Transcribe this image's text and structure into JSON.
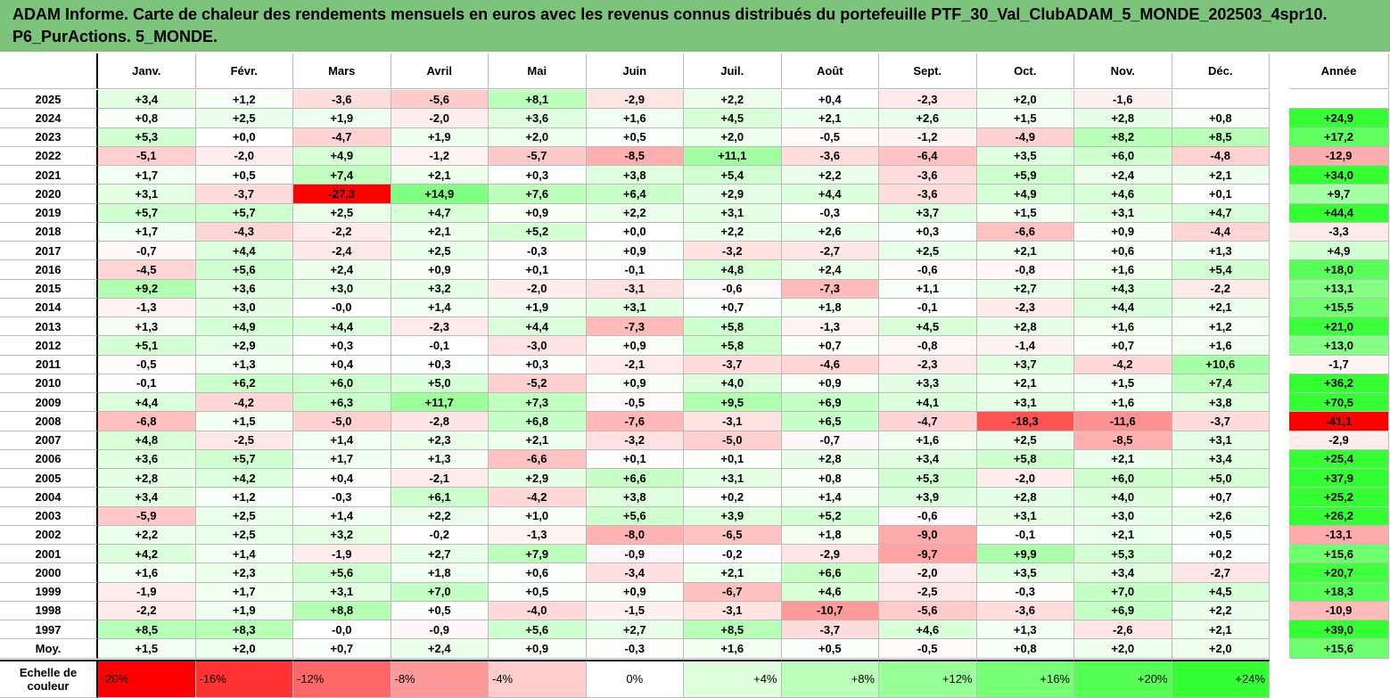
{
  "title": "ADAM Informe. Carte de chaleur des rendements mensuels en euros avec les revenus connus distribués du portefeuille PTF_30_Val_ClubADAM_5_MONDE_202503_4spr10. P6_PurActions. 5_MONDE.",
  "chart_data": {
    "type": "heatmap",
    "columns": [
      "Janv.",
      "Févr.",
      "Mars",
      "Avril",
      "Mai",
      "Juin",
      "Juil.",
      "Août",
      "Sept.",
      "Oct.",
      "Nov.",
      "Déc."
    ],
    "year_column": "Année",
    "rows": [
      {
        "label": "2025",
        "values": [
          "+3,4",
          "+1,2",
          "-3,6",
          "-5,6",
          "+8,1",
          "-2,9",
          "+2,2",
          "+0,4",
          "-2,3",
          "+2,0",
          "-1,6",
          ""
        ],
        "year": ""
      },
      {
        "label": "2024",
        "values": [
          "+0,8",
          "+2,5",
          "+1,9",
          "-2,0",
          "+3,6",
          "+1,6",
          "+4,5",
          "+2,1",
          "+2,6",
          "+1,5",
          "+2,8",
          "+0,8"
        ],
        "year": "+24,9"
      },
      {
        "label": "2023",
        "values": [
          "+5,3",
          "+0,0",
          "-4,7",
          "+1,9",
          "+2,0",
          "+0,5",
          "+2,0",
          "-0,5",
          "-1,2",
          "-4,9",
          "+8,2",
          "+8,5"
        ],
        "year": "+17,2"
      },
      {
        "label": "2022",
        "values": [
          "-5,1",
          "-2,0",
          "+4,9",
          "-1,2",
          "-5,7",
          "-8,5",
          "+11,1",
          "-3,6",
          "-6,4",
          "+3,5",
          "+6,0",
          "-4,8"
        ],
        "year": "-12,9"
      },
      {
        "label": "2021",
        "values": [
          "+1,7",
          "+0,5",
          "+7,4",
          "+2,1",
          "+0,3",
          "+3,8",
          "+5,4",
          "+2,2",
          "-3,6",
          "+5,9",
          "+2,4",
          "+2,1"
        ],
        "year": "+34,0"
      },
      {
        "label": "2020",
        "values": [
          "+3,1",
          "-3,7",
          "-27,3",
          "+14,9",
          "+7,6",
          "+6,4",
          "+2,9",
          "+4,4",
          "-3,6",
          "+4,9",
          "+4,6",
          "+0,1"
        ],
        "year": "+9,7"
      },
      {
        "label": "2019",
        "values": [
          "+5,7",
          "+5,7",
          "+2,5",
          "+4,7",
          "+0,9",
          "+2,2",
          "+3,1",
          "-0,3",
          "+3,7",
          "+1,5",
          "+3,1",
          "+4,7"
        ],
        "year": "+44,4"
      },
      {
        "label": "2018",
        "values": [
          "+1,7",
          "-4,3",
          "-2,2",
          "+2,1",
          "+5,2",
          "+0,0",
          "+2,2",
          "+2,6",
          "+0,3",
          "-6,6",
          "+0,9",
          "-4,4"
        ],
        "year": "-3,3"
      },
      {
        "label": "2017",
        "values": [
          "-0,7",
          "+4,4",
          "-2,4",
          "+2,5",
          "-0,3",
          "+0,9",
          "-3,2",
          "-2,7",
          "+2,5",
          "+2,1",
          "+0,6",
          "+1,3"
        ],
        "year": "+4,9"
      },
      {
        "label": "2016",
        "values": [
          "-4,5",
          "+5,6",
          "+2,4",
          "+0,9",
          "+0,1",
          "-0,1",
          "+4,8",
          "+2,4",
          "-0,6",
          "-0,8",
          "+1,6",
          "+5,4"
        ],
        "year": "+18,0"
      },
      {
        "label": "2015",
        "values": [
          "+9,2",
          "+3,6",
          "+3,0",
          "+3,2",
          "-2,0",
          "-3,1",
          "-0,6",
          "-7,3",
          "+1,1",
          "+2,7",
          "+4,3",
          "-2,2"
        ],
        "year": "+13,1"
      },
      {
        "label": "2014",
        "values": [
          "-1,3",
          "+3,0",
          "-0,0",
          "+1,4",
          "+1,9",
          "+3,1",
          "+0,7",
          "+1,8",
          "-0,1",
          "-2,3",
          "+4,4",
          "+2,1"
        ],
        "year": "+15,5"
      },
      {
        "label": "2013",
        "values": [
          "+1,3",
          "+4,9",
          "+4,4",
          "-2,3",
          "+4,4",
          "-7,3",
          "+5,8",
          "-1,3",
          "+4,5",
          "+2,8",
          "+1,6",
          "+1,2"
        ],
        "year": "+21,0"
      },
      {
        "label": "2012",
        "values": [
          "+5,1",
          "+2,9",
          "+0,3",
          "-0,1",
          "-3,0",
          "+0,9",
          "+5,8",
          "+0,7",
          "-0,8",
          "-1,4",
          "+0,7",
          "+1,6"
        ],
        "year": "+13,0"
      },
      {
        "label": "2011",
        "values": [
          "-0,5",
          "+1,3",
          "+0,4",
          "+0,3",
          "+0,3",
          "-2,1",
          "-3,7",
          "-4,6",
          "-2,3",
          "+3,7",
          "-4,2",
          "+10,6"
        ],
        "year": "-1,7"
      },
      {
        "label": "2010",
        "values": [
          "-0,1",
          "+6,2",
          "+6,0",
          "+5,0",
          "-5,2",
          "+0,9",
          "+4,0",
          "+0,9",
          "+3,3",
          "+2,1",
          "+1,5",
          "+7,4"
        ],
        "year": "+36,2"
      },
      {
        "label": "2009",
        "values": [
          "+4,4",
          "-4,2",
          "+6,3",
          "+11,7",
          "+7,3",
          "-0,5",
          "+9,5",
          "+6,9",
          "+4,1",
          "+3,1",
          "+1,6",
          "+3,8"
        ],
        "year": "+70,5"
      },
      {
        "label": "2008",
        "values": [
          "-6,8",
          "+1,5",
          "-5,0",
          "-2,8",
          "+6,8",
          "-7,6",
          "-3,1",
          "+6,5",
          "-4,7",
          "-18,3",
          "-11,6",
          "-3,7"
        ],
        "year": "-41,1"
      },
      {
        "label": "2007",
        "values": [
          "+4,8",
          "-2,5",
          "+1,4",
          "+2,3",
          "+2,1",
          "-3,2",
          "-5,0",
          "-0,7",
          "+1,6",
          "+2,5",
          "-8,5",
          "+3,1"
        ],
        "year": "-2,9"
      },
      {
        "label": "2006",
        "values": [
          "+3,6",
          "+5,7",
          "+1,7",
          "+1,3",
          "-6,6",
          "+0,1",
          "+0,1",
          "+2,8",
          "+3,4",
          "+5,8",
          "+2,1",
          "+3,4"
        ],
        "year": "+25,4"
      },
      {
        "label": "2005",
        "values": [
          "+2,8",
          "+4,2",
          "+0,4",
          "-2,1",
          "+2,9",
          "+6,6",
          "+3,1",
          "+0,8",
          "+5,3",
          "-2,0",
          "+6,0",
          "+5,0"
        ],
        "year": "+37,9"
      },
      {
        "label": "2004",
        "values": [
          "+3,4",
          "+1,2",
          "-0,3",
          "+6,1",
          "-4,2",
          "+3,8",
          "+0,2",
          "+1,4",
          "+3,9",
          "+2,8",
          "+4,0",
          "+0,7"
        ],
        "year": "+25,2"
      },
      {
        "label": "2003",
        "values": [
          "-5,9",
          "+2,5",
          "+1,4",
          "+2,2",
          "+1,0",
          "+5,6",
          "+3,9",
          "+5,2",
          "-0,6",
          "+3,1",
          "+3,0",
          "+2,6"
        ],
        "year": "+26,2"
      },
      {
        "label": "2002",
        "values": [
          "+2,2",
          "+2,5",
          "+3,2",
          "-0,2",
          "-1,3",
          "-8,0",
          "-6,5",
          "+1,8",
          "-9,0",
          "-0,1",
          "+2,1",
          "+0,5"
        ],
        "year": "-13,1"
      },
      {
        "label": "2001",
        "values": [
          "+4,2",
          "+1,4",
          "-1,9",
          "+2,7",
          "+7,9",
          "-0,9",
          "-0,2",
          "-2,9",
          "-9,7",
          "+9,9",
          "+5,3",
          "+0,2"
        ],
        "year": "+15,6"
      },
      {
        "label": "2000",
        "values": [
          "+1,6",
          "+2,3",
          "+5,6",
          "+1,8",
          "+0,6",
          "-3,4",
          "+2,1",
          "+6,6",
          "-2,0",
          "+3,5",
          "+3,4",
          "-2,7"
        ],
        "year": "+20,7"
      },
      {
        "label": "1999",
        "values": [
          "-1,9",
          "+1,7",
          "+3,1",
          "+7,0",
          "+0,5",
          "+0,9",
          "-6,7",
          "+4,6",
          "-2,5",
          "-0,3",
          "+7,0",
          "+4,5"
        ],
        "year": "+18,3"
      },
      {
        "label": "1998",
        "values": [
          "-2,2",
          "+1,9",
          "+8,8",
          "+0,5",
          "-4,0",
          "-1,5",
          "-3,1",
          "-10,7",
          "-5,6",
          "-3,6",
          "+6,9",
          "+2,2"
        ],
        "year": "-10,9"
      },
      {
        "label": "1997",
        "values": [
          "+8,5",
          "+8,3",
          "-0,0",
          "-0,9",
          "+5,6",
          "+2,7",
          "+8,5",
          "-3,7",
          "+4,6",
          "+1,3",
          "-2,6",
          "+2,1"
        ],
        "year": "+39,0"
      }
    ],
    "average": {
      "label": "Moy.",
      "values": [
        "+1,5",
        "+2,0",
        "+0,7",
        "+2,4",
        "+0,9",
        "-0,3",
        "+1,6",
        "+0,5",
        "-0,5",
        "+0,8",
        "+2,0",
        "+2,0"
      ],
      "year": "+15,6"
    },
    "scale": {
      "label": "Echelle de couleur",
      "values": [
        "-20%",
        "-16%",
        "-12%",
        "-8%",
        "-4%",
        "0%",
        "+4%",
        "+8%",
        "+12%",
        "+16%",
        "+20%",
        "+24%"
      ]
    },
    "colors": {
      "neg": "#ff0000",
      "pos": "#33ff33",
      "title_bg": "#7cc47c"
    }
  }
}
